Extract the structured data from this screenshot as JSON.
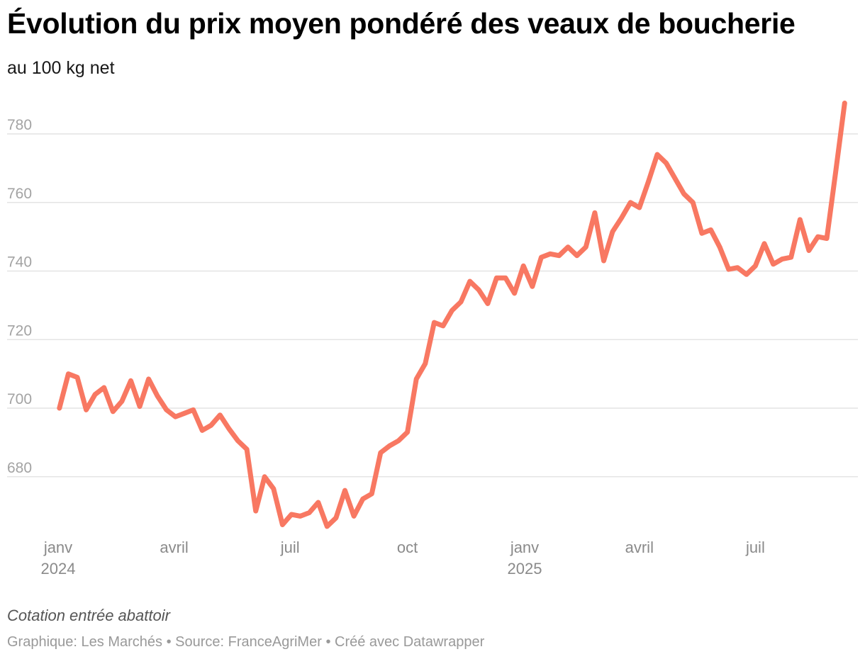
{
  "header": {
    "title": "Évolution du prix moyen pondéré des veaux de boucherie",
    "subtitle": "au 100 kg net"
  },
  "notes": "Cotation entrée abattoir",
  "footer": {
    "credit": "Graphique: Les Marchés",
    "source": "Source: FranceAgriMer",
    "tool": "Créé avec Datawrapper",
    "separator": " • "
  },
  "colors": {
    "line": "#f87862",
    "grid": "#e4e4e4",
    "tick_text": "#a3a3a3"
  },
  "chart_data": {
    "type": "line",
    "title": "Évolution du prix moyen pondéré des veaux de boucherie",
    "subtitle": "au 100 kg net",
    "xlabel": "",
    "ylabel": "",
    "ylim": [
      663,
      790
    ],
    "yticks": [
      680,
      700,
      720,
      740,
      760,
      780
    ],
    "grid": true,
    "legend": "none",
    "x_ticks": [
      {
        "date": "2024-01-01",
        "label": "janv",
        "year": "2024"
      },
      {
        "date": "2024-04-01",
        "label": "avril",
        "year": ""
      },
      {
        "date": "2024-07-01",
        "label": "juil",
        "year": ""
      },
      {
        "date": "2024-10-01",
        "label": "oct",
        "year": ""
      },
      {
        "date": "2025-01-01",
        "label": "janv",
        "year": "2025"
      },
      {
        "date": "2025-04-01",
        "label": "avril",
        "year": ""
      },
      {
        "date": "2025-07-01",
        "label": "juil",
        "year": ""
      }
    ],
    "series": [
      {
        "points": [
          [
            "2024-01-02",
            700
          ],
          [
            "2024-01-09",
            710
          ],
          [
            "2024-01-16",
            709
          ],
          [
            "2024-01-23",
            699.5
          ],
          [
            "2024-01-30",
            704
          ],
          [
            "2024-02-06",
            706
          ],
          [
            "2024-02-13",
            699
          ],
          [
            "2024-02-20",
            702
          ],
          [
            "2024-02-27",
            708
          ],
          [
            "2024-03-05",
            700.5
          ],
          [
            "2024-03-12",
            708.5
          ],
          [
            "2024-03-19",
            703.5
          ],
          [
            "2024-03-26",
            699.5
          ],
          [
            "2024-04-02",
            697.5
          ],
          [
            "2024-04-09",
            698.5
          ],
          [
            "2024-04-16",
            699.5
          ],
          [
            "2024-04-23",
            693.5
          ],
          [
            "2024-04-30",
            695
          ],
          [
            "2024-05-07",
            698
          ],
          [
            "2024-05-14",
            694
          ],
          [
            "2024-05-21",
            690.5
          ],
          [
            "2024-05-28",
            688
          ],
          [
            "2024-06-04",
            670
          ],
          [
            "2024-06-11",
            680
          ],
          [
            "2024-06-18",
            676.5
          ],
          [
            "2024-06-25",
            666
          ],
          [
            "2024-07-02",
            669
          ],
          [
            "2024-07-09",
            668.5
          ],
          [
            "2024-07-16",
            669.5
          ],
          [
            "2024-07-23",
            672.5
          ],
          [
            "2024-07-30",
            665.5
          ],
          [
            "2024-08-06",
            668
          ],
          [
            "2024-08-13",
            676
          ],
          [
            "2024-08-20",
            668.5
          ],
          [
            "2024-08-27",
            673.5
          ],
          [
            "2024-09-03",
            675
          ],
          [
            "2024-09-10",
            687
          ],
          [
            "2024-09-17",
            689
          ],
          [
            "2024-09-24",
            690.5
          ],
          [
            "2024-10-01",
            693
          ],
          [
            "2024-10-08",
            708.5
          ],
          [
            "2024-10-15",
            713
          ],
          [
            "2024-10-22",
            725
          ],
          [
            "2024-10-29",
            724
          ],
          [
            "2024-11-05",
            728.5
          ],
          [
            "2024-11-12",
            731
          ],
          [
            "2024-11-19",
            737
          ],
          [
            "2024-11-26",
            734.5
          ],
          [
            "2024-12-03",
            730.5
          ],
          [
            "2024-12-10",
            738
          ],
          [
            "2024-12-17",
            738
          ],
          [
            "2024-12-24",
            733.5
          ],
          [
            "2024-12-31",
            741.5
          ],
          [
            "2025-01-07",
            735.5
          ],
          [
            "2025-01-14",
            744
          ],
          [
            "2025-01-21",
            745
          ],
          [
            "2025-01-28",
            744.5
          ],
          [
            "2025-02-04",
            747
          ],
          [
            "2025-02-11",
            744.5
          ],
          [
            "2025-02-18",
            747
          ],
          [
            "2025-02-25",
            757
          ],
          [
            "2025-03-04",
            743
          ],
          [
            "2025-03-11",
            751.5
          ],
          [
            "2025-03-18",
            755.5
          ],
          [
            "2025-03-25",
            760
          ],
          [
            "2025-04-01",
            758.5
          ],
          [
            "2025-04-08",
            766
          ],
          [
            "2025-04-15",
            774
          ],
          [
            "2025-04-22",
            771.5
          ],
          [
            "2025-04-29",
            767
          ],
          [
            "2025-05-06",
            762.5
          ],
          [
            "2025-05-13",
            760
          ],
          [
            "2025-05-20",
            751
          ],
          [
            "2025-05-27",
            752
          ],
          [
            "2025-06-03",
            747
          ],
          [
            "2025-06-10",
            740.5
          ],
          [
            "2025-06-17",
            741
          ],
          [
            "2025-06-24",
            739
          ],
          [
            "2025-07-01",
            741.5
          ],
          [
            "2025-07-08",
            748
          ],
          [
            "2025-07-15",
            742
          ],
          [
            "2025-07-22",
            743.5
          ],
          [
            "2025-07-29",
            744
          ],
          [
            "2025-08-05",
            755
          ],
          [
            "2025-08-12",
            746
          ],
          [
            "2025-08-19",
            750
          ],
          [
            "2025-08-26",
            749.5
          ],
          [
            "2025-09-02",
            769
          ],
          [
            "2025-09-09",
            789
          ]
        ]
      }
    ]
  }
}
